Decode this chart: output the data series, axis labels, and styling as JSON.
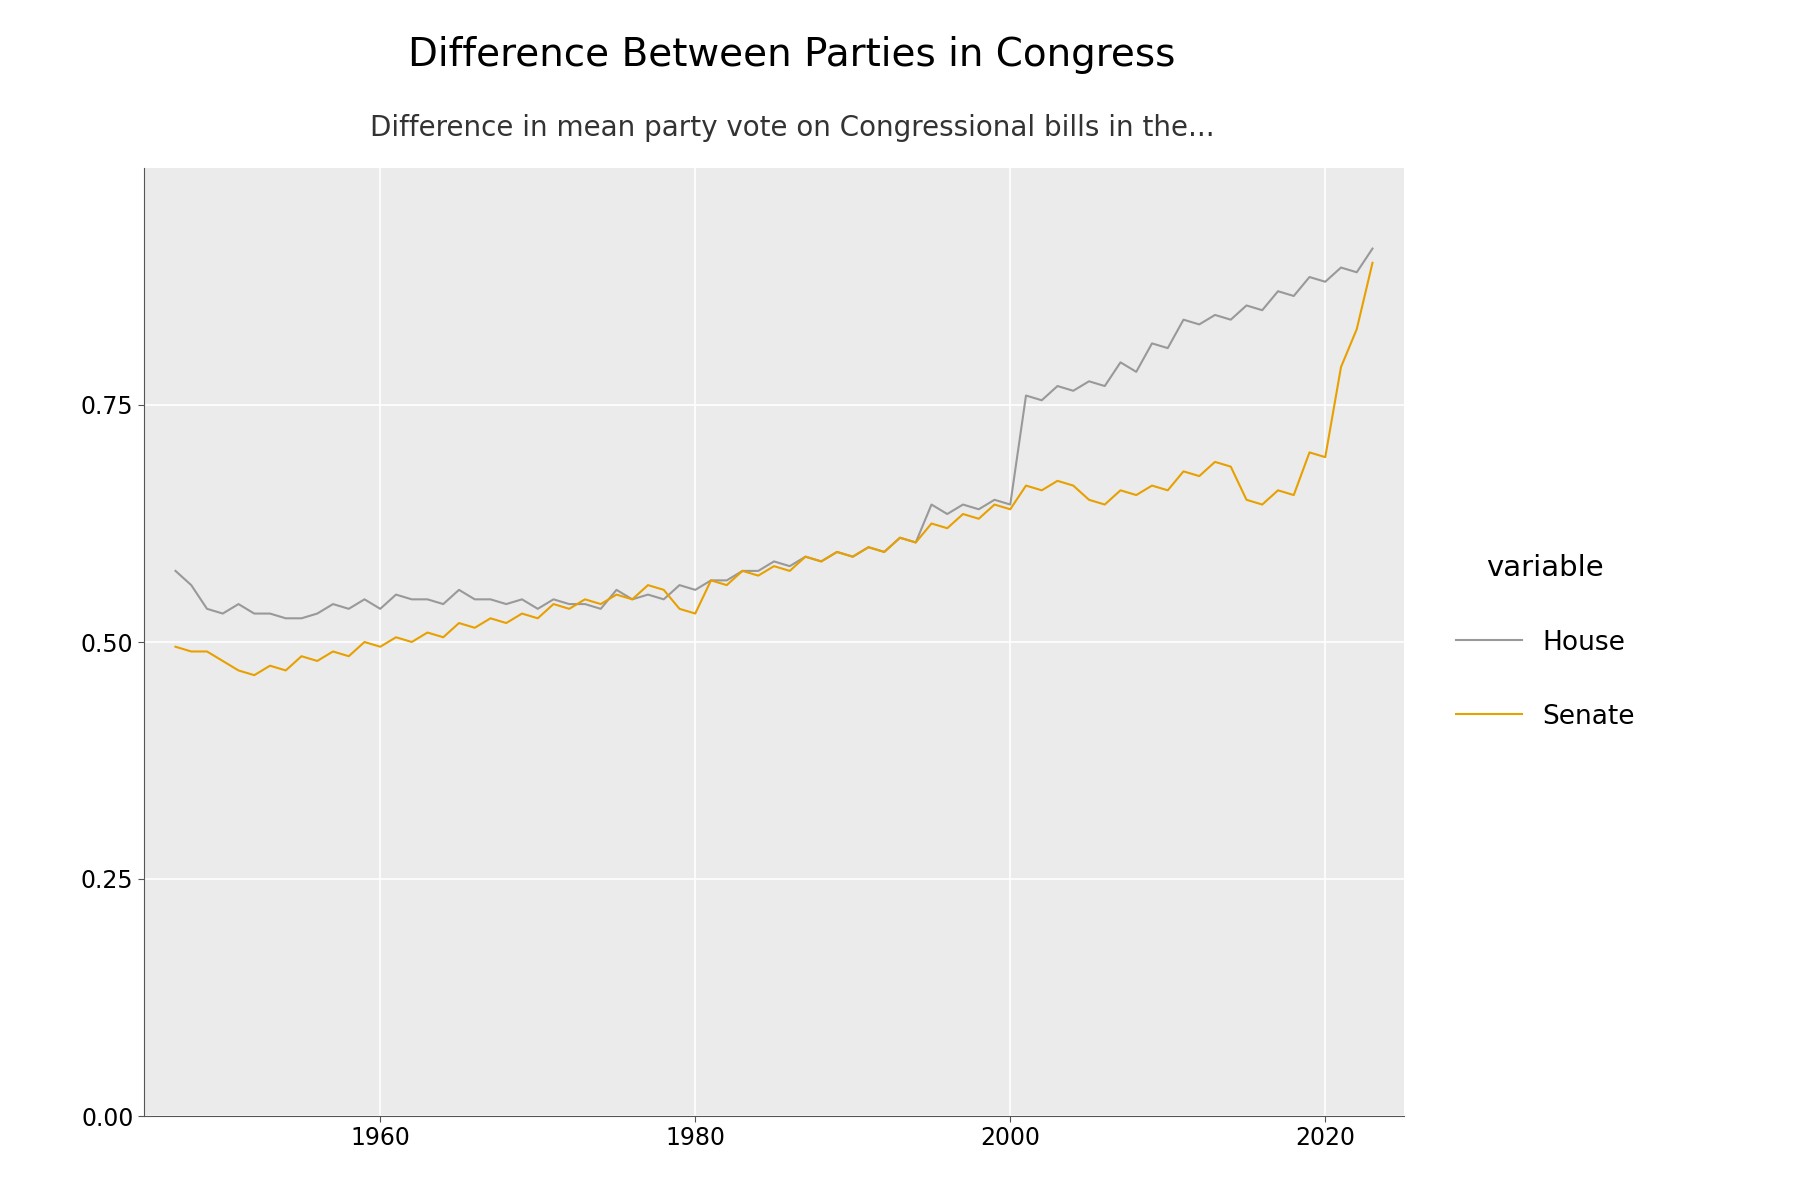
{
  "title": "Difference Between Parties in Congress",
  "subtitle": "Difference in mean party vote on Congressional bills in the...",
  "legend_title": "variable",
  "legend_labels": [
    "House",
    "Senate"
  ],
  "house_color": "#999999",
  "senate_color": "#E8A000",
  "house_years": [
    1947,
    1948,
    1949,
    1950,
    1951,
    1952,
    1953,
    1954,
    1955,
    1956,
    1957,
    1958,
    1959,
    1960,
    1961,
    1962,
    1963,
    1964,
    1965,
    1966,
    1967,
    1968,
    1969,
    1970,
    1971,
    1972,
    1973,
    1974,
    1975,
    1976,
    1977,
    1978,
    1979,
    1980,
    1981,
    1982,
    1983,
    1984,
    1985,
    1986,
    1987,
    1988,
    1989,
    1990,
    1991,
    1992,
    1993,
    1994,
    1995,
    1996,
    1997,
    1998,
    1999,
    2000,
    2001,
    2002,
    2003,
    2004,
    2005,
    2006,
    2007,
    2008,
    2009,
    2010,
    2011,
    2012,
    2013,
    2014,
    2015,
    2016,
    2017,
    2018,
    2019,
    2020,
    2021,
    2022,
    2023
  ],
  "house_values": [
    0.575,
    0.56,
    0.535,
    0.53,
    0.54,
    0.53,
    0.53,
    0.525,
    0.525,
    0.53,
    0.54,
    0.535,
    0.545,
    0.535,
    0.55,
    0.545,
    0.545,
    0.54,
    0.555,
    0.545,
    0.545,
    0.54,
    0.545,
    0.535,
    0.545,
    0.54,
    0.54,
    0.535,
    0.555,
    0.545,
    0.55,
    0.545,
    0.56,
    0.555,
    0.565,
    0.565,
    0.575,
    0.575,
    0.585,
    0.58,
    0.59,
    0.585,
    0.595,
    0.59,
    0.6,
    0.595,
    0.61,
    0.605,
    0.645,
    0.635,
    0.645,
    0.64,
    0.65,
    0.645,
    0.76,
    0.755,
    0.77,
    0.765,
    0.775,
    0.77,
    0.795,
    0.785,
    0.815,
    0.81,
    0.84,
    0.835,
    0.845,
    0.84,
    0.855,
    0.85,
    0.87,
    0.865,
    0.885,
    0.88,
    0.895,
    0.89,
    0.915
  ],
  "senate_years": [
    1947,
    1948,
    1949,
    1950,
    1951,
    1952,
    1953,
    1954,
    1955,
    1956,
    1957,
    1958,
    1959,
    1960,
    1961,
    1962,
    1963,
    1964,
    1965,
    1966,
    1967,
    1968,
    1969,
    1970,
    1971,
    1972,
    1973,
    1974,
    1975,
    1976,
    1977,
    1978,
    1979,
    1980,
    1981,
    1982,
    1983,
    1984,
    1985,
    1986,
    1987,
    1988,
    1989,
    1990,
    1991,
    1992,
    1993,
    1994,
    1995,
    1996,
    1997,
    1998,
    1999,
    2000,
    2001,
    2002,
    2003,
    2004,
    2005,
    2006,
    2007,
    2008,
    2009,
    2010,
    2011,
    2012,
    2013,
    2014,
    2015,
    2016,
    2017,
    2018,
    2019,
    2020,
    2021,
    2022,
    2023
  ],
  "senate_values": [
    0.495,
    0.49,
    0.49,
    0.48,
    0.47,
    0.465,
    0.475,
    0.47,
    0.485,
    0.48,
    0.49,
    0.485,
    0.5,
    0.495,
    0.505,
    0.5,
    0.51,
    0.505,
    0.52,
    0.515,
    0.525,
    0.52,
    0.53,
    0.525,
    0.54,
    0.535,
    0.545,
    0.54,
    0.55,
    0.545,
    0.56,
    0.555,
    0.535,
    0.53,
    0.565,
    0.56,
    0.575,
    0.57,
    0.58,
    0.575,
    0.59,
    0.585,
    0.595,
    0.59,
    0.6,
    0.595,
    0.61,
    0.605,
    0.625,
    0.62,
    0.635,
    0.63,
    0.645,
    0.64,
    0.665,
    0.66,
    0.67,
    0.665,
    0.65,
    0.645,
    0.66,
    0.655,
    0.665,
    0.66,
    0.68,
    0.675,
    0.69,
    0.685,
    0.65,
    0.645,
    0.66,
    0.655,
    0.7,
    0.695,
    0.79,
    0.83,
    0.9
  ],
  "xlim": [
    1945,
    2025
  ],
  "ylim": [
    0.0,
    1.0
  ],
  "yticks": [
    0.0,
    0.25,
    0.5,
    0.75
  ],
  "ytick_labels": [
    "0.00",
    "0.25",
    "0.50",
    "0.75"
  ],
  "xticks": [
    1960,
    1980,
    2000,
    2020
  ],
  "line_width": 1.5,
  "title_fontsize": 28,
  "subtitle_fontsize": 20,
  "tick_fontsize": 17,
  "legend_fontsize": 19,
  "legend_title_fontsize": 21,
  "plot_bg_color": "#EBEBEB"
}
